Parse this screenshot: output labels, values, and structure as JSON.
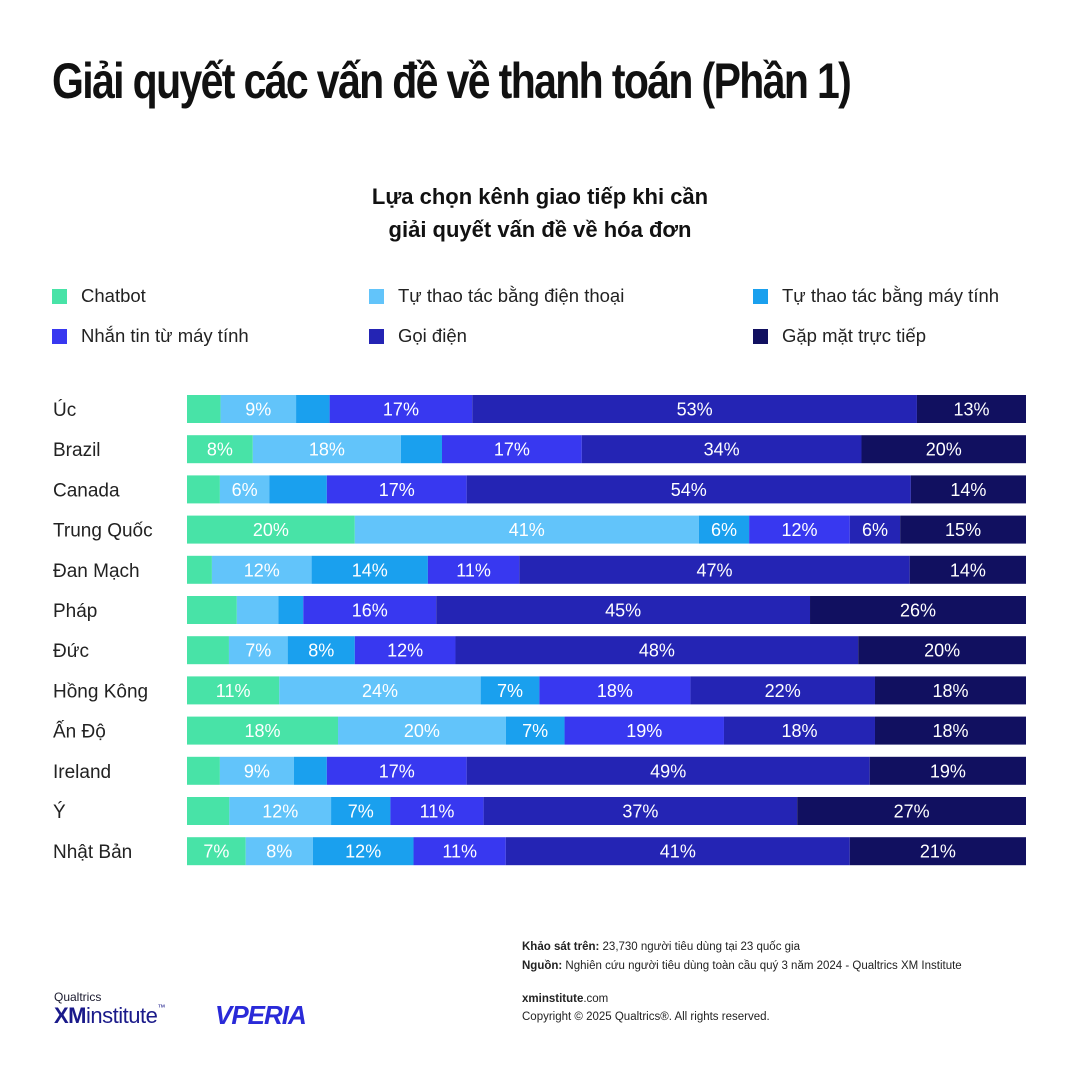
{
  "title": "Giải quyết các vấn đề về thanh toán (Phần 1)",
  "chart_title_line1": "Lựa chọn kênh giao tiếp khi cần",
  "chart_title_line2": "giải quyết vấn đề về hóa đơn",
  "colors": [
    "#48e3a7",
    "#62c4fa",
    "#1aa0ee",
    "#3838f0",
    "#2424b4",
    "#111060"
  ],
  "chart_data": {
    "type": "bar",
    "stacked": true,
    "orientation": "horizontal",
    "xlim": [
      0,
      100
    ],
    "categories": [
      "Úc",
      "Brazil",
      "Canada",
      "Trung Quốc",
      "Đan Mạch",
      "Pháp",
      "Đức",
      "Hồng Kông",
      "Ấn Độ",
      "Ireland",
      "Ý",
      "Nhật Bản"
    ],
    "series": [
      {
        "name": "Chatbot",
        "values": [
          4,
          8,
          4,
          20,
          3,
          6,
          5,
          11,
          18,
          4,
          5,
          7
        ]
      },
      {
        "name": "Tự thao tác bằng điện thoại",
        "values": [
          9,
          18,
          6,
          41,
          12,
          5,
          7,
          24,
          20,
          9,
          12,
          8
        ]
      },
      {
        "name": "Tự thao tác bằng máy tính",
        "values": [
          4,
          5,
          7,
          6,
          14,
          3,
          8,
          7,
          7,
          4,
          7,
          12
        ]
      },
      {
        "name": "Nhắn tin từ máy tính",
        "values": [
          17,
          17,
          17,
          12,
          11,
          16,
          12,
          18,
          19,
          17,
          11,
          11
        ]
      },
      {
        "name": "Gọi điện",
        "values": [
          53,
          34,
          54,
          6,
          47,
          45,
          48,
          22,
          18,
          49,
          37,
          41
        ]
      },
      {
        "name": "Gặp mặt trực tiếp",
        "values": [
          13,
          20,
          14,
          15,
          14,
          26,
          20,
          18,
          18,
          19,
          27,
          21
        ]
      }
    ],
    "labels": [
      [
        "",
        "9%",
        "",
        "17%",
        "53%",
        "13%"
      ],
      [
        "8%",
        "18%",
        "",
        "17%",
        "34%",
        "20%"
      ],
      [
        "",
        "6%",
        "",
        "17%",
        "54%",
        "14%"
      ],
      [
        "20%",
        "41%",
        "6%",
        "12%",
        "6%",
        "15%"
      ],
      [
        "",
        "12%",
        "14%",
        "11%",
        "47%",
        "14%"
      ],
      [
        "",
        "",
        "",
        "16%",
        "45%",
        "26%"
      ],
      [
        "",
        "7%",
        "8%",
        "12%",
        "48%",
        "20%"
      ],
      [
        "11%",
        "24%",
        "7%",
        "18%",
        "22%",
        "18%"
      ],
      [
        "18%",
        "20%",
        "7%",
        "19%",
        "18%",
        "18%"
      ],
      [
        "",
        "9%",
        "",
        "17%",
        "49%",
        "19%"
      ],
      [
        "",
        "12%",
        "7%",
        "11%",
        "37%",
        "27%"
      ],
      [
        "7%",
        "8%",
        "12%",
        "11%",
        "41%",
        "21%"
      ]
    ]
  },
  "footer": {
    "survey_label": "Khảo sát trên:",
    "survey_text": " 23,730 người tiêu dùng tại 23 quốc gia",
    "source_label": "Nguồn:",
    "source_text": " Nghiên cứu người tiêu dùng toàn cầu quý 3 năm 2024 - Qualtrics XM Institute",
    "site_bold": "xminstitute",
    "site_rest": ".com",
    "copyright": "Copyright © 2025 Qualtrics®. All rights reserved."
  },
  "logos": {
    "qualtrics": "Qualtrics",
    "xm": "XM",
    "institute": "institute",
    "tm": "™",
    "vperia": "VPERIA"
  }
}
